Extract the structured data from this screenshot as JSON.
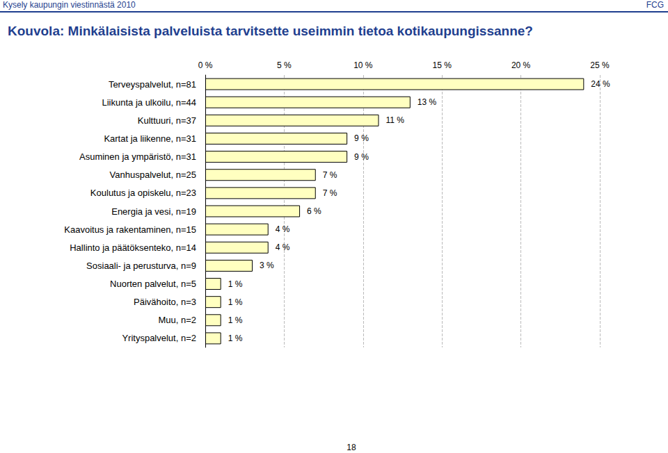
{
  "page": {
    "header": "Kysely kaupungin viestinnästä 2010",
    "brand": "FCG",
    "page_number": "18"
  },
  "chart_data": {
    "type": "bar",
    "orientation": "horizontal",
    "title": "Kouvola: Minkälaisista palveluista tarvitsette useimmin tietoa kotikaupungissanne?",
    "categories": [
      "Terveyspalvelut, n=81",
      "Liikunta ja ulkoilu, n=44",
      "Kulttuuri, n=37",
      "Kartat ja liikenne, n=31",
      "Asuminen ja ympäristö, n=31",
      "Vanhuspalvelut, n=25",
      "Koulutus ja opiskelu, n=23",
      "Energia ja vesi, n=19",
      "Kaavoitus ja rakentaminen, n=15",
      "Hallinto ja päätöksenteko, n=14",
      "Sosiaali- ja perusturva, n=9",
      "Nuorten palvelut, n=5",
      "Päivähoito, n=3",
      "Muu, n=2",
      "Yrityspalvelut, n=2"
    ],
    "values": [
      24,
      13,
      11,
      9,
      9,
      7,
      7,
      6,
      4,
      4,
      3,
      1,
      1,
      1,
      1
    ],
    "value_labels": [
      "24 %",
      "13 %",
      "11 %",
      "9 %",
      "9 %",
      "7 %",
      "7 %",
      "6 %",
      "4 %",
      "4 %",
      "3 %",
      "1 %",
      "1 %",
      "1 %",
      "1 %"
    ],
    "color": "#FFFFC0",
    "xlim": [
      0,
      25
    ],
    "xticks": [
      {
        "value": 0,
        "label": "0 %"
      },
      {
        "value": 5,
        "label": "5 %"
      },
      {
        "value": 10,
        "label": "10 %"
      },
      {
        "value": 15,
        "label": "15 %"
      },
      {
        "value": 20,
        "label": "20 %"
      },
      {
        "value": 25,
        "label": "25 %"
      }
    ],
    "grid": true,
    "data_labels": true
  }
}
